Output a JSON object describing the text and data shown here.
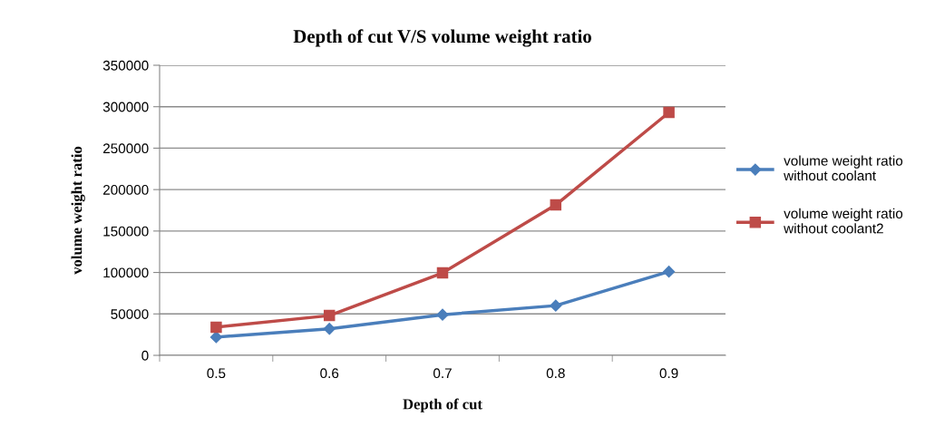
{
  "chart_data": {
    "type": "line",
    "title": "Depth of cut V/S volume weight ratio",
    "xlabel": "Depth of cut",
    "ylabel": "volume weight ratio",
    "categories": [
      "0.5",
      "0.6",
      "0.7",
      "0.8",
      "0.9"
    ],
    "series": [
      {
        "name": "volume weight ratio without coolant",
        "color": "#4a7ebb",
        "marker": "diamond",
        "values": [
          22000,
          32000,
          49000,
          60000,
          101000
        ]
      },
      {
        "name": "volume weight ratio without coolant2",
        "color": "#be4b48",
        "marker": "square",
        "values": [
          34000,
          48000,
          99500,
          181500,
          293000
        ]
      }
    ],
    "ylim": [
      0,
      350000
    ],
    "yticks": [
      0,
      50000,
      100000,
      150000,
      200000,
      250000,
      300000,
      350000
    ],
    "grid": "y",
    "legend": "right",
    "line_style": "solid"
  }
}
